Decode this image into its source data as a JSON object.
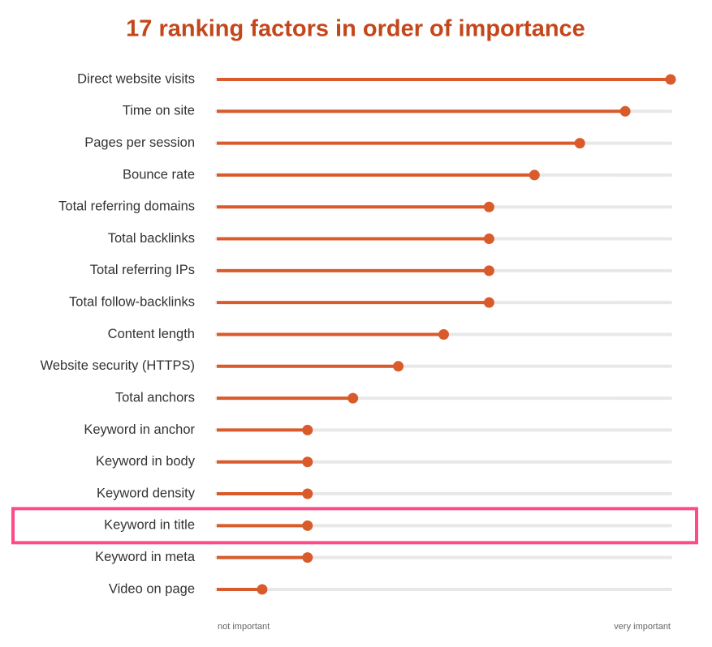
{
  "chart_data": {
    "type": "lollipop",
    "title": "17 ranking factors in order of importance",
    "categories": [
      "Direct website visits",
      "Time on site",
      "Pages per session",
      "Bounce rate",
      "Total referring domains",
      "Total backlinks",
      "Total referring IPs",
      "Total follow-backlinks",
      "Content length",
      "Website security (HTTPS)",
      "Total anchors",
      "Keyword in anchor",
      "Keyword in body",
      "Keyword density",
      "Keyword in title",
      "Keyword in meta",
      "Video on page"
    ],
    "values": [
      10,
      9,
      8,
      7,
      6,
      6,
      6,
      6,
      5,
      4,
      3,
      2,
      2,
      2,
      2,
      2,
      1
    ],
    "xlim": [
      0,
      10
    ],
    "xticks": [
      {
        "value": 0,
        "label": "not important"
      },
      {
        "value": 10,
        "label": "very important"
      }
    ],
    "color": "#d95b2b",
    "track_color": "#e8e8e8",
    "highlight": "Keyword in title",
    "highlight_color": "#ff4a8a"
  }
}
